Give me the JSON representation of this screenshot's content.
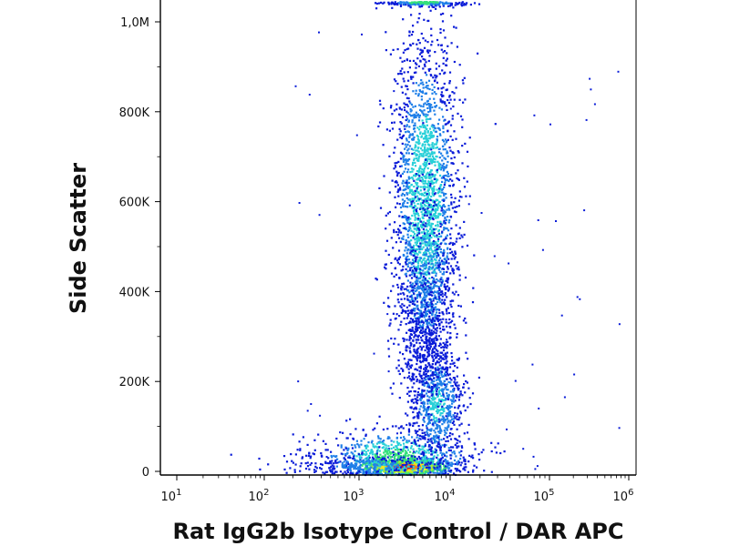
{
  "chart_data": {
    "type": "scatter",
    "title": "",
    "xlabel": "Rat IgG2b Isotype Control / DAR APC",
    "ylabel": "Side Scatter",
    "x_scale": "log",
    "xlim": [
      10,
      1000000
    ],
    "ylim": [
      0,
      1050000
    ],
    "grid": false,
    "x_ticks": [
      {
        "value": 10,
        "base": "10",
        "exp": "1"
      },
      {
        "value": 100,
        "base": "10",
        "exp": "2"
      },
      {
        "value": 1000,
        "base": "10",
        "exp": "3"
      },
      {
        "value": 10000,
        "base": "10",
        "exp": "4"
      },
      {
        "value": 100000,
        "base": "10",
        "exp": "5"
      },
      {
        "value": 1000000,
        "base": "10",
        "exp": "6"
      }
    ],
    "y_ticks": [
      {
        "value": 0,
        "label": "0"
      },
      {
        "value": 200000,
        "label": "200K"
      },
      {
        "value": 400000,
        "label": "400K"
      },
      {
        "value": 600000,
        "label": "600K"
      },
      {
        "value": 800000,
        "label": "800K"
      },
      {
        "value": 1000000,
        "label": "1,0M"
      }
    ],
    "density_colormap": [
      "#0a1cd8",
      "#1f7fe8",
      "#28d0d8",
      "#34e07a",
      "#b4f028",
      "#f6e51c",
      "#f08214",
      "#d8141c"
    ],
    "populations": [
      {
        "x_center": 3000,
        "y_center": 15000,
        "density_peak": "high"
      },
      {
        "x_center": 4000,
        "y_center": 40000,
        "density_peak": "medium"
      },
      {
        "x_center": 6000,
        "y_center": 150000,
        "density_peak": "low"
      },
      {
        "x_center": 5000,
        "y_center": 600000,
        "density_peak": "medium"
      },
      {
        "x_center": 5000,
        "y_center": 1040000,
        "density_peak": "low"
      }
    ]
  }
}
